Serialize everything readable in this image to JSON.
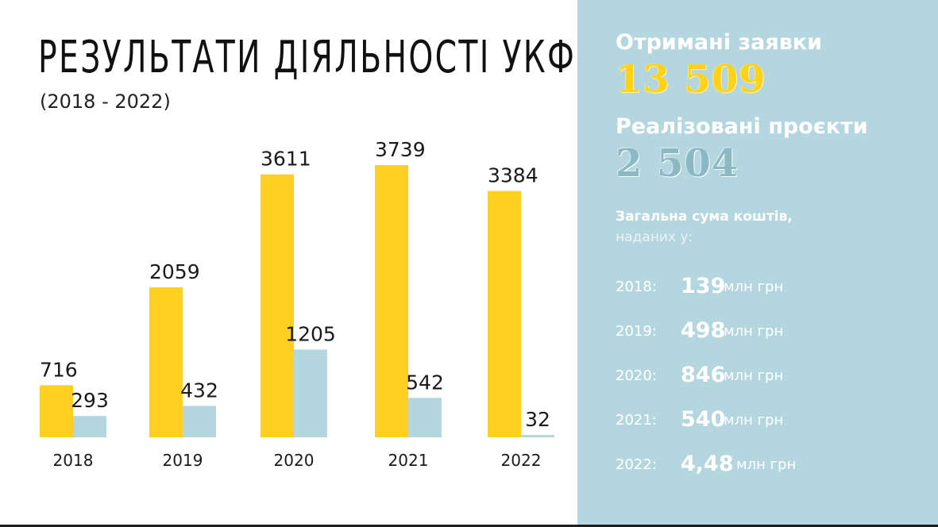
{
  "title": "РЕЗУЛЬТАТИ ДІЯЛЬНОСТІ УКФ",
  "subtitle": "(2018 - 2022)",
  "colors": {
    "applications": "#ffd01f",
    "projects": "#b4d6df",
    "panel": "#b4d6df"
  },
  "chart_data": {
    "type": "bar",
    "categories": [
      "2018",
      "2019",
      "2020",
      "2021",
      "2022"
    ],
    "series": [
      {
        "values": [
          716,
          2059,
          3611,
          3739,
          3384
        ]
      },
      {
        "values": [
          293,
          432,
          1205,
          542,
          32
        ]
      }
    ],
    "ylim": [
      0,
      3739
    ],
    "grid": false
  },
  "summary": {
    "received_label": "Отримані заявки",
    "received_value": "13 509",
    "implemented_label": "Реалізовані проєкти",
    "implemented_value": "2 504",
    "total_title": "Загальна сума коштів,",
    "total_title_2": "наданих у:",
    "funds": [
      {
        "year": "2018:",
        "value": "139",
        "unit": "млн грн"
      },
      {
        "year": "2019:",
        "value": "498",
        "unit": "млн грн"
      },
      {
        "year": "2020:",
        "value": "846",
        "unit": "млн грн"
      },
      {
        "year": "2021:",
        "value": "540",
        "unit": "млн грн"
      },
      {
        "year": "2022:",
        "value": "4,48",
        "unit": "млн грн"
      }
    ]
  }
}
